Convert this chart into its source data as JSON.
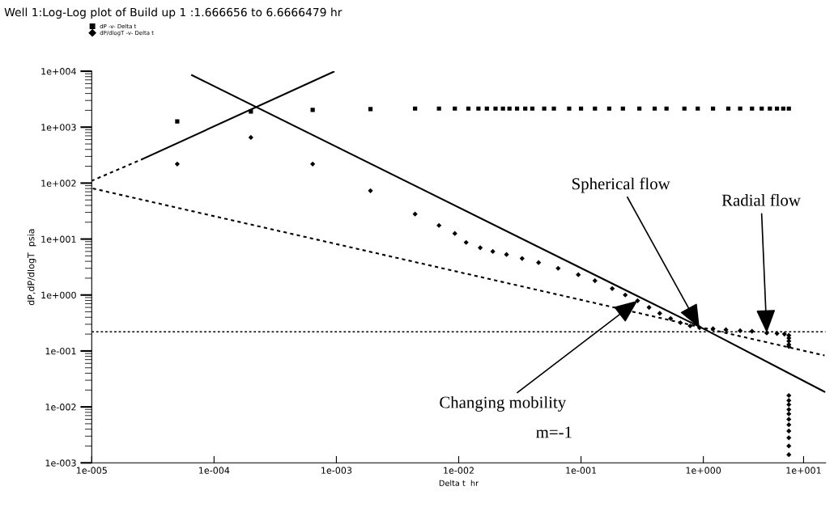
{
  "chart_data": {
    "type": "scatter",
    "title": "Well 1:Log-Log plot of Build up 1 :1.666656 to 6.6666479 hr",
    "xlabel": "Delta t  hr",
    "ylabel": "dP,dP/dlogT  psia",
    "log": "xy",
    "xlim": [
      1e-05,
      10
    ],
    "ylim": [
      0.001,
      10000
    ],
    "xticks": [
      {
        "value": 1e-05,
        "label": "1e-005"
      },
      {
        "value": 0.0001,
        "label": "1e-004"
      },
      {
        "value": 0.001,
        "label": "1e-003"
      },
      {
        "value": 0.01,
        "label": "1e-002"
      },
      {
        "value": 0.1,
        "label": "1e-001"
      },
      {
        "value": 1,
        "label": "1e+000"
      },
      {
        "value": 6.6,
        "label": "1e+001"
      }
    ],
    "yticks": [
      {
        "value": 0.001,
        "label": "1e-003"
      },
      {
        "value": 0.01,
        "label": "1e-002"
      },
      {
        "value": 0.1,
        "label": "1e-001"
      },
      {
        "value": 1,
        "label": "1e+000"
      },
      {
        "value": 10,
        "label": "1e+001"
      },
      {
        "value": 100,
        "label": "1e+002"
      },
      {
        "value": 1000,
        "label": "1e+003"
      },
      {
        "value": 10000,
        "label": "1e+004"
      }
    ],
    "grid": false,
    "legend": "top left",
    "series": [
      {
        "name": "dP -v- Delta t",
        "marker": "square",
        "color": "#000000",
        "x": [
          5e-05,
          0.0002,
          0.00064,
          0.0019,
          0.0044,
          0.0069,
          0.0093,
          0.012,
          0.0145,
          0.017,
          0.02,
          0.023,
          0.026,
          0.03,
          0.035,
          0.04,
          0.05,
          0.06,
          0.08,
          0.1,
          0.13,
          0.17,
          0.22,
          0.3,
          0.4,
          0.5,
          0.7,
          0.9,
          1.2,
          1.6,
          2,
          2.5,
          3,
          3.5,
          4,
          4.5,
          5
        ],
        "values": [
          1270,
          1900,
          2030,
          2100,
          2150,
          2150,
          2150,
          2150,
          2150,
          2150,
          2150,
          2150,
          2150,
          2150,
          2150,
          2150,
          2150,
          2150,
          2150,
          2150,
          2150,
          2150,
          2150,
          2150,
          2150,
          2150,
          2150,
          2150,
          2150,
          2150,
          2150,
          2150,
          2150,
          2150,
          2150,
          2150,
          2150
        ]
      },
      {
        "name": "dP/dlogT -v- Delta t",
        "marker": "diamond",
        "color": "#000000",
        "x": [
          5e-05,
          0.0002,
          0.00064,
          0.0019,
          0.0044,
          0.0069,
          0.0093,
          0.0115,
          0.015,
          0.019,
          0.0246,
          0.033,
          0.045,
          0.065,
          0.095,
          0.13,
          0.18,
          0.23,
          0.29,
          0.36,
          0.44,
          0.54,
          0.65,
          0.78,
          0.93,
          1.2,
          1.53,
          2,
          2.5,
          3.3,
          4,
          4.6,
          5,
          5,
          5,
          5,
          5,
          5,
          5,
          5,
          5,
          5,
          5,
          5,
          5,
          5,
          5,
          5
        ],
        "values": [
          219,
          655,
          219,
          73,
          28,
          17.5,
          12.6,
          8.7,
          7,
          6,
          5.3,
          4.5,
          3.8,
          3,
          2.3,
          1.8,
          1.3,
          1,
          0.79,
          0.6,
          0.47,
          0.38,
          0.32,
          0.28,
          0.26,
          0.25,
          0.24,
          0.23,
          0.225,
          0.21,
          0.205,
          0.2,
          0.19,
          0.17,
          0.15,
          0.13,
          0.12,
          0.016,
          0.013,
          0.011,
          0.009,
          0.0075,
          0.006,
          0.0048,
          0.0037,
          0.0028,
          0.002,
          0.0014
        ]
      },
      {
        "type": "line",
        "line_style": "dotted",
        "color": "#000000",
        "x": [
          1e-05,
          2.6e-05
        ],
        "values": [
          110,
          269
        ]
      },
      {
        "type": "line",
        "line_style": "solid",
        "color": "#000000",
        "x": [
          2.6e-05,
          0.00095
        ],
        "values": [
          269,
          9800
        ]
      },
      {
        "type": "line",
        "line_style": "solid",
        "color": "#000000",
        "x": [
          6.6e-05,
          1,
          9.8
        ],
        "values": [
          8500,
          0.25,
          0.0186
        ]
      },
      {
        "type": "line",
        "line_style": "dotted",
        "color": "#000000",
        "x": [
          1e-05,
          9.8
        ],
        "values": [
          81,
          0.083
        ]
      }
    ],
    "ref_lines": [
      {
        "axis": "y",
        "value": 0.22,
        "color": "#000000",
        "line_style": "dotted"
      }
    ],
    "annotations": [
      {
        "text": "Spherical flow",
        "x": 0.93,
        "y": 0.26
      },
      {
        "text": "Radial flow",
        "x": 3.3,
        "y": 0.21
      },
      {
        "text": "Changing mobility",
        "x": 0.29,
        "y": 0.79
      },
      "m=-1"
    ]
  }
}
